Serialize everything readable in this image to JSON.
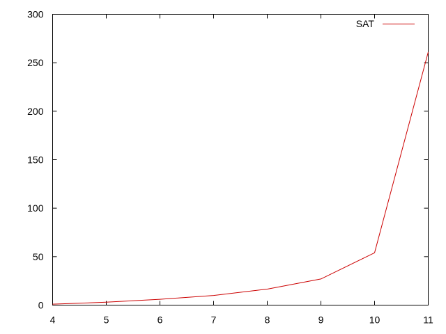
{
  "chart_data": {
    "type": "line",
    "x": [
      4,
      5,
      6,
      7,
      8,
      9,
      10,
      11
    ],
    "series": [
      {
        "name": "SAT",
        "color": "#cc0000",
        "values": [
          1,
          3,
          6,
          10,
          16.5,
          27,
          54,
          261
        ]
      }
    ],
    "xlim": [
      4,
      11
    ],
    "ylim": [
      0,
      300
    ],
    "xticks": [
      "4",
      "5",
      "6",
      "7",
      "8",
      "9",
      "10",
      "11"
    ],
    "yticks": [
      "0",
      "50",
      "100",
      "150",
      "200",
      "250",
      "300"
    ],
    "grid": false,
    "legend_position": "top-right"
  }
}
